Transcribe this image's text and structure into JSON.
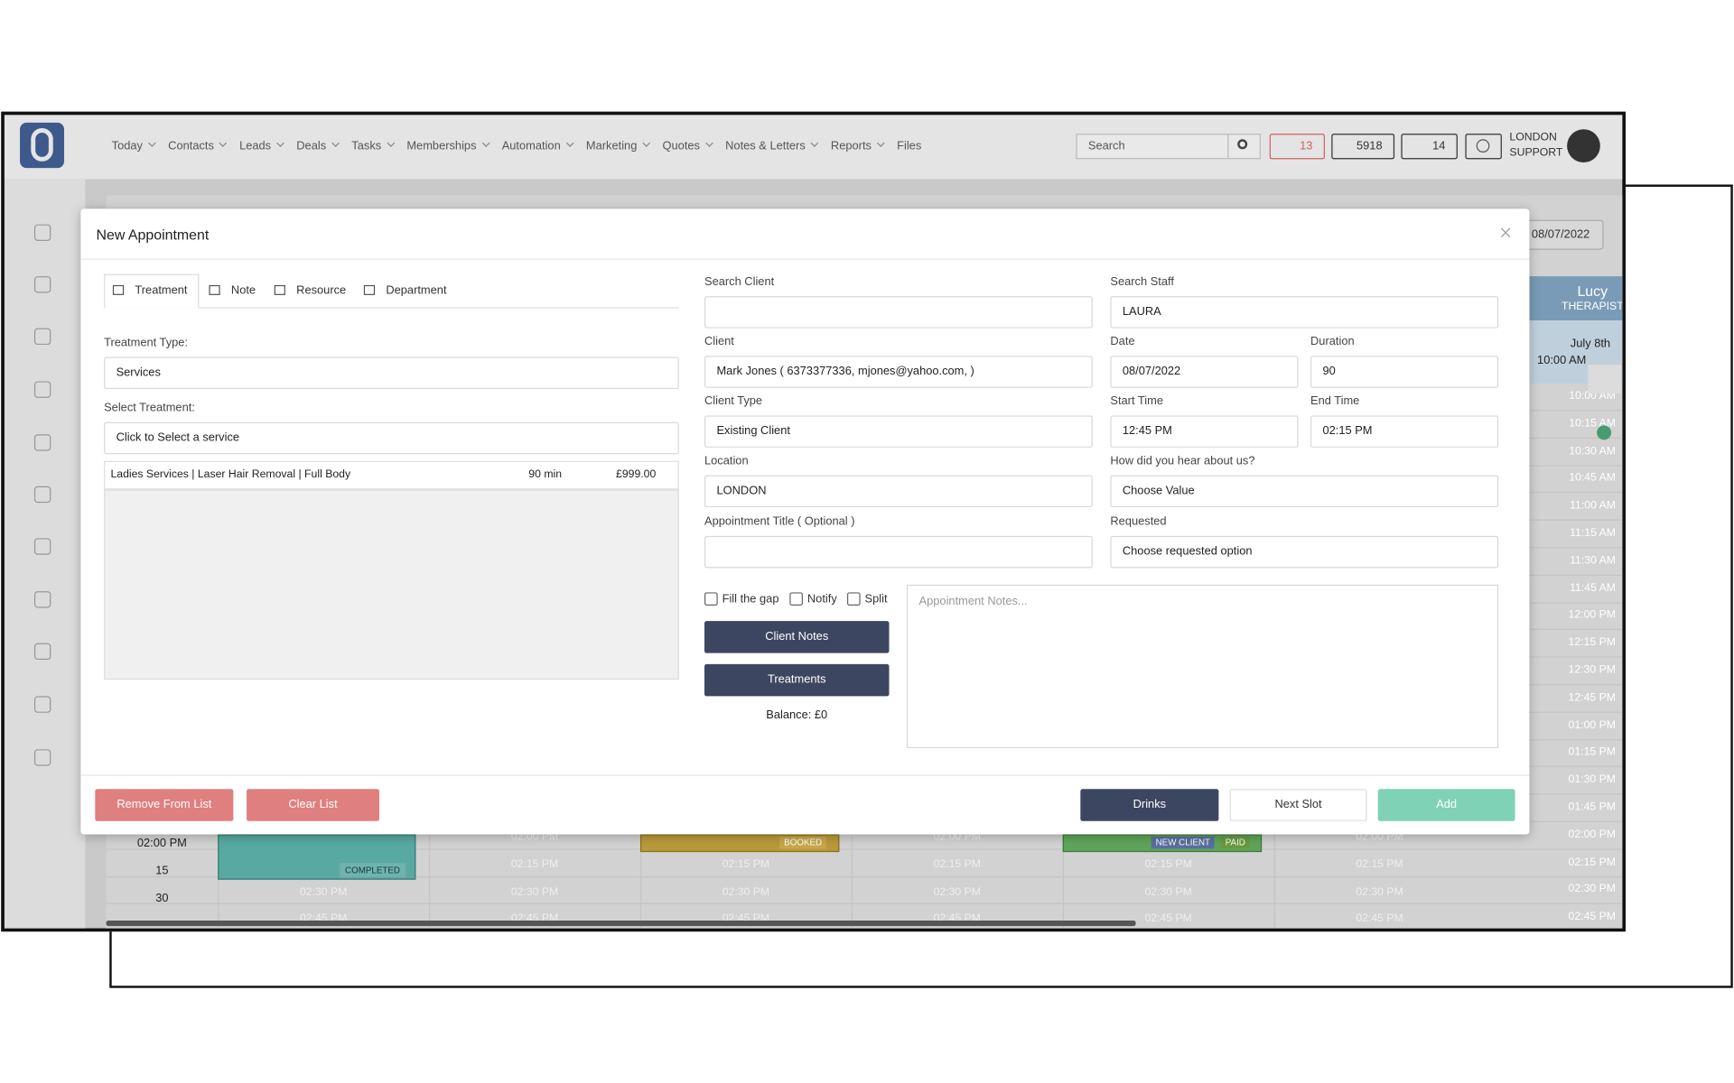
{
  "nav": {
    "items": [
      "Today",
      "Contacts",
      "Leads",
      "Deals",
      "Tasks",
      "Memberships",
      "Automation",
      "Marketing",
      "Quotes",
      "Notes & Letters",
      "Reports",
      "Files"
    ],
    "search_placeholder": "Search",
    "mail_count": "13",
    "phone_count": "5918",
    "tasks_count": "14",
    "user": [
      "LONDON",
      "SUPPORT"
    ]
  },
  "calendar": {
    "date": "08/07/2022",
    "staff_name": "Lucy",
    "staff_role": "THERAPIST",
    "day": "July 8th",
    "start": "10:00 AM",
    "right_times": [
      "10:00 AM",
      "10:15 AM",
      "10:30 AM",
      "10:45 AM",
      "11:00 AM",
      "11:15 AM",
      "11:30 AM",
      "11:45 AM",
      "12:00 PM",
      "12:15 PM",
      "12:30 PM",
      "12:45 PM",
      "01:00 PM",
      "01:15 PM",
      "01:30 PM",
      "01:45 PM",
      "02:00 PM",
      "02:15 PM",
      "02:30 PM",
      "02:45 PM"
    ],
    "rows": [
      {
        "label": "02:00 PM",
        "time": "02:00 PM"
      },
      {
        "label": "15",
        "time": "02:15 PM"
      },
      {
        "label": "30",
        "time": "02:30 PM"
      },
      {
        "time": "02:45 PM"
      }
    ],
    "tags": [
      "COMPLETED",
      "BOOKED",
      "NEW CLIENT",
      "PAID"
    ]
  },
  "modal": {
    "title": "New Appointment",
    "tabs": [
      "Treatment",
      "Note",
      "Resource",
      "Department"
    ],
    "treatment_type_label": "Treatment Type:",
    "treatment_type": "Services",
    "select_treatment_label": "Select Treatment:",
    "select_placeholder": "Click to Select a service",
    "selected": {
      "name": "Ladies Services | Laser Hair Removal | Full Body",
      "duration": "90 min",
      "price": "£999.00"
    },
    "fields": [
      {
        "label": "Search Client"
      },
      {
        "label": "Search Staff",
        "value": "LAURA"
      },
      {
        "label": "Client",
        "value": "Mark Jones ( 6373377336, mjones@yahoo.com, )"
      },
      {
        "label": "Date",
        "value": "08/07/2022"
      },
      {
        "label": "Duration",
        "value": "90"
      },
      {
        "label": "Client Type",
        "value": "Existing Client"
      },
      {
        "label": "Start Time",
        "value": "12:45 PM"
      },
      {
        "label": "End Time",
        "value": "02:15 PM"
      },
      {
        "label": "Location",
        "value": "LONDON"
      },
      {
        "label": "How did you hear about us?",
        "value": "Choose Value"
      },
      {
        "label": "Appointment Title ( Optional )"
      },
      {
        "label": "Requested",
        "value": "Choose requested option"
      }
    ],
    "checkboxes": [
      "Fill the gap",
      "Notify",
      "Split"
    ],
    "client_notes": "Client Notes",
    "treatments": "Treatments",
    "balance": "Balance: £0",
    "notes_placeholder": "Appointment Notes...",
    "footer": {
      "remove": "Remove From List",
      "clear": "Clear List",
      "drinks": "Drinks",
      "next": "Next Slot",
      "add": "Add"
    }
  }
}
